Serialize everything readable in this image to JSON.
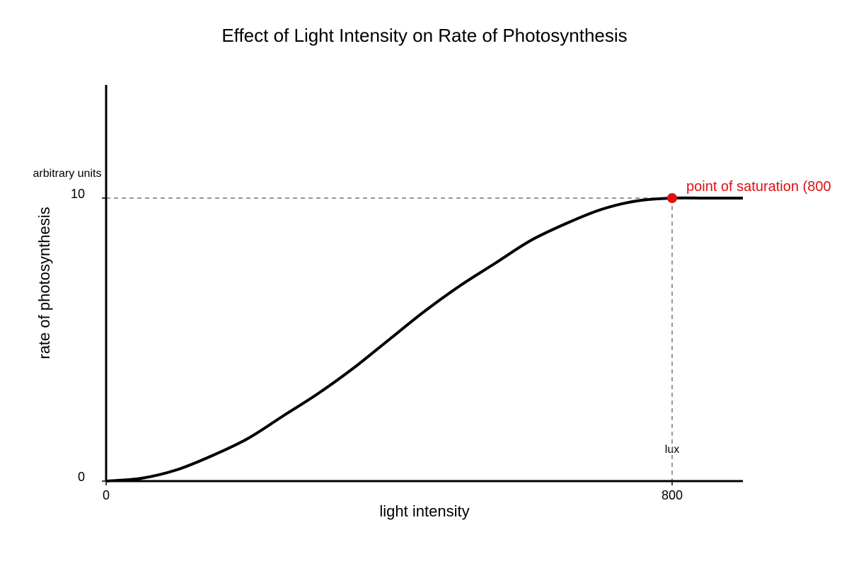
{
  "chart_data": {
    "type": "line",
    "title": "Effect of Light Intensity on Rate of Photosynthesis",
    "xlabel": "light intensity",
    "ylabel": "rate of photosynthesis",
    "x_unit": "lux",
    "y_unit": "arbitrary units",
    "xlim": [
      0,
      900
    ],
    "ylim": [
      0,
      14
    ],
    "x_ticks": [
      {
        "value": 0,
        "label": "0"
      },
      {
        "value": 800,
        "label": "800"
      }
    ],
    "y_ticks": [
      {
        "value": 0,
        "label": "0"
      },
      {
        "value": 10,
        "label": "10"
      }
    ],
    "series": [
      {
        "x": [
          0,
          50,
          100,
          150,
          200,
          250,
          300,
          350,
          400,
          450,
          500,
          550,
          600,
          650,
          700,
          750,
          800,
          850,
          900
        ],
        "y": [
          0,
          0.1,
          0.4,
          0.9,
          1.5,
          2.3,
          3.1,
          4.0,
          5.0,
          6.0,
          6.9,
          7.7,
          8.5,
          9.1,
          9.6,
          9.9,
          10,
          10,
          10
        ],
        "color": "#000000"
      }
    ],
    "annotations": [
      {
        "text": "point of saturation (800",
        "x": 800,
        "y": 10,
        "color": "#e01010"
      }
    ],
    "reference_lines": [
      {
        "axis": "y",
        "value": 10
      },
      {
        "axis": "x",
        "value": 800
      }
    ],
    "grid": false,
    "legend": "none"
  }
}
